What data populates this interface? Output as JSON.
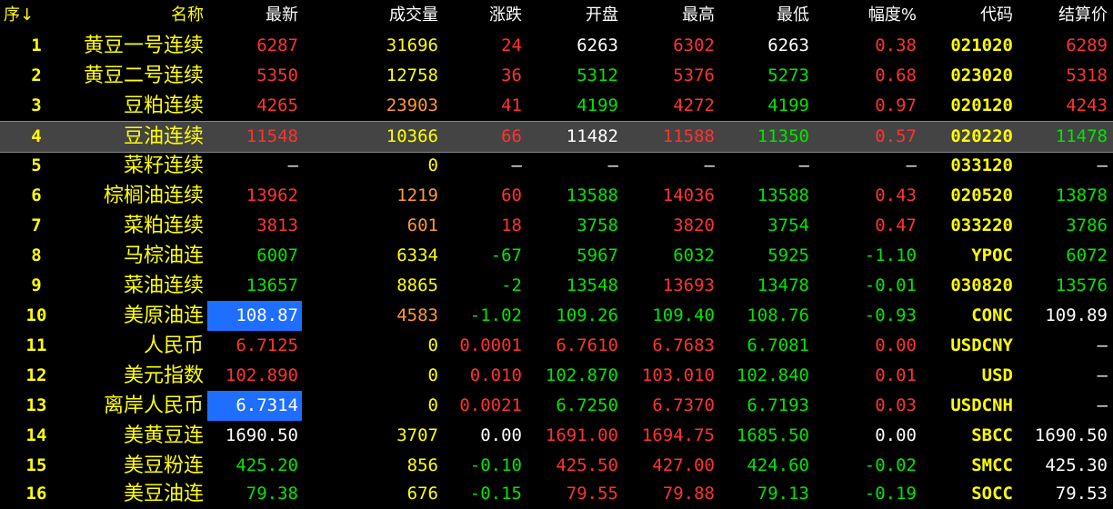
{
  "headers": {
    "seq": "序↓",
    "name": "名称",
    "last": "最新",
    "volume": "成交量",
    "change": "涨跌",
    "open": "开盘",
    "high": "最高",
    "low": "最低",
    "pct": "幅度%",
    "code": "代码",
    "settle": "结算价"
  },
  "colors": {
    "up": "#ff3232",
    "down": "#00e600",
    "name": "#ffff00",
    "highlight": "#1e6fff",
    "selected_row": "#444444"
  },
  "rows": [
    {
      "seq": "1",
      "name": "黄豆一号连续",
      "last": "6287",
      "volume": "31696",
      "change": "24",
      "open": "6263",
      "high": "6302",
      "low": "6263",
      "pct": "0.38",
      "code": "021020",
      "settle": "6289"
    },
    {
      "seq": "2",
      "name": "黄豆二号连续",
      "last": "5350",
      "volume": "12758",
      "change": "36",
      "open": "5312",
      "high": "5376",
      "low": "5273",
      "pct": "0.68",
      "code": "023020",
      "settle": "5318"
    },
    {
      "seq": "3",
      "name": "豆粕连续",
      "last": "4265",
      "volume": "23903",
      "change": "41",
      "open": "4199",
      "high": "4272",
      "low": "4199",
      "pct": "0.97",
      "code": "020120",
      "settle": "4243"
    },
    {
      "seq": "4",
      "name": "豆油连续",
      "last": "11548",
      "volume": "10366",
      "change": "66",
      "open": "11482",
      "high": "11588",
      "low": "11350",
      "pct": "0.57",
      "code": "020220",
      "settle": "11478"
    },
    {
      "seq": "5",
      "name": "菜籽连续",
      "last": "—",
      "volume": "0",
      "change": "—",
      "open": "—",
      "high": "—",
      "low": "—",
      "pct": "—",
      "code": "033120",
      "settle": "—"
    },
    {
      "seq": "6",
      "name": "棕榈油连续",
      "last": "13962",
      "volume": "1219",
      "change": "60",
      "open": "13588",
      "high": "14036",
      "low": "13588",
      "pct": "0.43",
      "code": "020520",
      "settle": "13878"
    },
    {
      "seq": "7",
      "name": "菜粕连续",
      "last": "3813",
      "volume": "601",
      "change": "18",
      "open": "3758",
      "high": "3820",
      "low": "3754",
      "pct": "0.47",
      "code": "033220",
      "settle": "3786"
    },
    {
      "seq": "8",
      "name": "马棕油连",
      "last": "6007",
      "volume": "6334",
      "change": "-67",
      "open": "5967",
      "high": "6032",
      "low": "5925",
      "pct": "-1.10",
      "code": "YPOC",
      "settle": "6072"
    },
    {
      "seq": "9",
      "name": "菜油连续",
      "last": "13657",
      "volume": "8865",
      "change": "-2",
      "open": "13548",
      "high": "13693",
      "low": "13478",
      "pct": "-0.01",
      "code": "030820",
      "settle": "13576"
    },
    {
      "seq": "10",
      "name": "美原油连",
      "last": "108.87",
      "volume": "4583",
      "change": "-1.02",
      "open": "109.26",
      "high": "109.40",
      "low": "108.76",
      "pct": "-0.93",
      "code": "CONC",
      "settle": "109.89"
    },
    {
      "seq": "11",
      "name": "人民币",
      "last": "6.7125",
      "volume": "0",
      "change": "0.0001",
      "open": "6.7610",
      "high": "6.7683",
      "low": "6.7081",
      "pct": "0.00",
      "code": "USDCNY",
      "settle": "—"
    },
    {
      "seq": "12",
      "name": "美元指数",
      "last": "102.890",
      "volume": "0",
      "change": "0.010",
      "open": "102.870",
      "high": "103.010",
      "low": "102.840",
      "pct": "0.01",
      "code": "USD",
      "settle": "—"
    },
    {
      "seq": "13",
      "name": "离岸人民币",
      "last": "6.7314",
      "volume": "0",
      "change": "0.0021",
      "open": "6.7250",
      "high": "6.7370",
      "low": "6.7193",
      "pct": "0.03",
      "code": "USDCNH",
      "settle": "—"
    },
    {
      "seq": "14",
      "name": "美黄豆连",
      "last": "1690.50",
      "volume": "3707",
      "change": "0.00",
      "open": "1691.00",
      "high": "1694.75",
      "low": "1685.50",
      "pct": "0.00",
      "code": "SBCC",
      "settle": "1690.50"
    },
    {
      "seq": "15",
      "name": "美豆粉连",
      "last": "425.20",
      "volume": "856",
      "change": "-0.10",
      "open": "425.50",
      "high": "427.00",
      "low": "424.60",
      "pct": "-0.02",
      "code": "SMCC",
      "settle": "425.30"
    },
    {
      "seq": "16",
      "name": "美豆油连",
      "last": "79.38",
      "volume": "676",
      "change": "-0.15",
      "open": "79.55",
      "high": "79.88",
      "low": "79.13",
      "pct": "-0.19",
      "code": "SOCC",
      "settle": "79.53"
    }
  ]
}
